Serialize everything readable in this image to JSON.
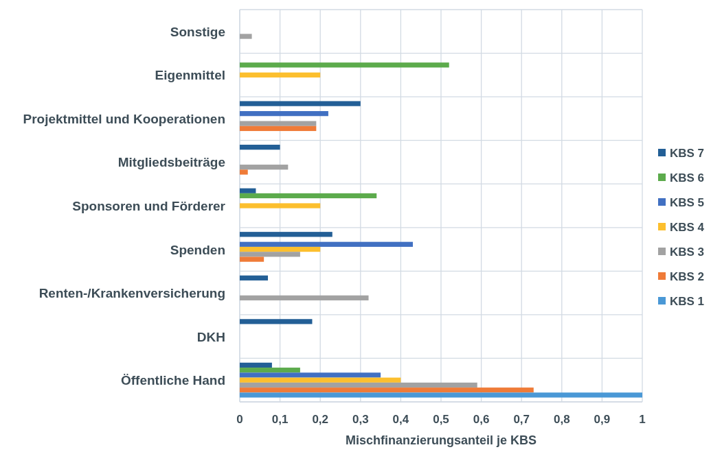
{
  "chart_data": {
    "type": "bar",
    "orientation": "horizontal",
    "categories": [
      "Sonstige",
      "Eigenmittel",
      "Projektmittel und Kooperationen",
      "Mitgliedsbeiträge",
      "Sponsoren und Förderer",
      "Spenden",
      "Renten-/Krankenversicherung",
      "DKH",
      "Öffentliche Hand"
    ],
    "series": [
      {
        "name": "KBS 7",
        "color": "#235f96",
        "values": [
          null,
          null,
          0.3,
          0.1,
          0.04,
          0.23,
          0.07,
          0.18,
          0.08
        ]
      },
      {
        "name": "KBS 6",
        "color": "#5cab4c",
        "values": [
          null,
          0.52,
          null,
          null,
          0.34,
          null,
          null,
          null,
          0.15
        ]
      },
      {
        "name": "KBS 5",
        "color": "#4170c2",
        "values": [
          null,
          null,
          0.22,
          null,
          null,
          0.43,
          null,
          null,
          0.35
        ]
      },
      {
        "name": "KBS 4",
        "color": "#fcbf2e",
        "values": [
          null,
          0.2,
          null,
          null,
          0.2,
          0.2,
          null,
          null,
          0.4
        ]
      },
      {
        "name": "KBS 3",
        "color": "#a2a2a2",
        "values": [
          0.03,
          null,
          0.19,
          0.12,
          null,
          0.15,
          0.32,
          null,
          0.59
        ]
      },
      {
        "name": "KBS 2",
        "color": "#ef7b38",
        "values": [
          null,
          null,
          0.19,
          0.02,
          null,
          0.06,
          null,
          null,
          0.73
        ]
      },
      {
        "name": "KBS 1",
        "color": "#4a98d6",
        "values": [
          null,
          null,
          null,
          null,
          null,
          null,
          null,
          null,
          1
        ]
      }
    ],
    "xlim": [
      0,
      1
    ],
    "xticks": [
      0,
      {
        "value": 0.1,
        "label": "0,1"
      },
      {
        "value": 0.2,
        "label": "0,2"
      },
      {
        "value": 0.3,
        "label": "0,3"
      },
      {
        "value": 0.4,
        "label": "0,4"
      },
      {
        "value": 0.5,
        "label": "0,5"
      },
      {
        "value": 0.6,
        "label": "0,6"
      },
      {
        "value": 0.7,
        "label": "0,7"
      },
      {
        "value": 0.8,
        "label": "0,8"
      },
      {
        "value": 0.9,
        "label": "0,9"
      },
      1
    ],
    "xlabel": "Mischfinanzierungsanteil je KBS",
    "grid": true,
    "legend": "right"
  }
}
